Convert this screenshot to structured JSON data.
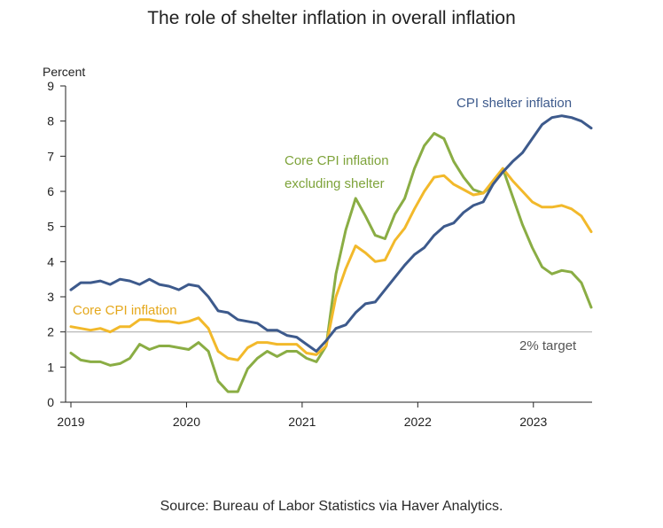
{
  "chart_data": {
    "type": "line",
    "title": "The role of shelter inflation in overall inflation",
    "ylabel": "Percent",
    "xlabel": "",
    "ylim": [
      0,
      9
    ],
    "xlim": [
      2019.0,
      2023.5
    ],
    "y_ticks": [
      "0",
      "1",
      "2",
      "3",
      "4",
      "5",
      "6",
      "7",
      "8",
      "9"
    ],
    "x_ticks": [
      {
        "value": 2019,
        "label": "2019"
      },
      {
        "value": 2020,
        "label": "2020"
      },
      {
        "value": 2021,
        "label": "2021"
      },
      {
        "value": 2022,
        "label": "2022"
      },
      {
        "value": 2023,
        "label": "2023"
      }
    ],
    "grid": false,
    "reference_line": {
      "value": 2,
      "label": "2% target",
      "color": "#b0b0b0"
    },
    "series": [
      {
        "name": "CPI shelter inflation",
        "color": "#3d5a8c",
        "values": [
          3.2,
          3.4,
          3.4,
          3.45,
          3.35,
          3.5,
          3.45,
          3.35,
          3.5,
          3.35,
          3.3,
          3.2,
          3.35,
          3.3,
          3.0,
          2.6,
          2.55,
          2.35,
          2.3,
          2.25,
          2.05,
          2.05,
          1.9,
          1.85,
          1.65,
          1.45,
          1.75,
          2.1,
          2.2,
          2.55,
          2.8,
          2.85,
          3.2,
          3.55,
          3.9,
          4.2,
          4.4,
          4.75,
          5.0,
          5.1,
          5.4,
          5.6,
          5.7,
          6.2,
          6.55,
          6.85,
          7.1,
          7.5,
          7.9,
          8.1,
          8.15,
          8.1,
          8.0,
          7.8
        ]
      },
      {
        "name": "Core CPI inflation",
        "color": "#f2b92b",
        "values": [
          2.15,
          2.1,
          2.05,
          2.1,
          2.0,
          2.15,
          2.15,
          2.35,
          2.35,
          2.3,
          2.3,
          2.25,
          2.3,
          2.4,
          2.1,
          1.45,
          1.25,
          1.2,
          1.55,
          1.7,
          1.7,
          1.65,
          1.65,
          1.65,
          1.4,
          1.35,
          1.6,
          3.0,
          3.8,
          4.45,
          4.25,
          4.0,
          4.05,
          4.6,
          4.95,
          5.5,
          6.0,
          6.4,
          6.45,
          6.2,
          6.05,
          5.9,
          5.95,
          6.3,
          6.65,
          6.3,
          6.0,
          5.7,
          5.55,
          5.55,
          5.6,
          5.5,
          5.3,
          4.85
        ]
      },
      {
        "name": "Core CPI inflation excluding shelter",
        "color": "#8aad44",
        "values": [
          1.4,
          1.2,
          1.15,
          1.15,
          1.05,
          1.1,
          1.25,
          1.65,
          1.5,
          1.6,
          1.6,
          1.55,
          1.5,
          1.7,
          1.45,
          0.6,
          0.3,
          0.3,
          0.95,
          1.25,
          1.45,
          1.3,
          1.45,
          1.45,
          1.25,
          1.15,
          1.6,
          3.65,
          4.9,
          5.8,
          5.3,
          4.75,
          4.65,
          5.35,
          5.8,
          6.65,
          7.3,
          7.65,
          7.5,
          6.85,
          6.4,
          6.05,
          5.95,
          6.2,
          6.65,
          5.85,
          5.05,
          4.4,
          3.85,
          3.65,
          3.75,
          3.7,
          3.4,
          2.7
        ]
      }
    ],
    "annotations": [
      {
        "text": "CPI shelter inflation",
        "series": "CPI shelter inflation"
      },
      {
        "text": "Core CPI inflation",
        "series": "Core CPI inflation"
      },
      {
        "text": "Core CPI inflation",
        "series": "Core CPI inflation excluding shelter",
        "line": 1
      },
      {
        "text": "excluding shelter",
        "series": "Core CPI inflation excluding shelter",
        "line": 2
      }
    ]
  },
  "source": "Source: Bureau of Labor Statistics via Haver Analytics."
}
